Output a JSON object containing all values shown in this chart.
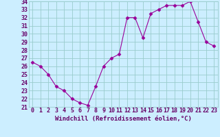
{
  "x": [
    0,
    1,
    2,
    3,
    4,
    5,
    6,
    7,
    8,
    9,
    10,
    11,
    12,
    13,
    14,
    15,
    16,
    17,
    18,
    19,
    20,
    21,
    22,
    23
  ],
  "y": [
    26.5,
    26.0,
    25.0,
    23.5,
    23.0,
    22.0,
    21.5,
    21.2,
    23.5,
    26.0,
    27.0,
    27.5,
    32.0,
    32.0,
    29.5,
    32.5,
    33.0,
    33.5,
    33.5,
    33.5,
    34.0,
    31.5,
    29.0,
    28.5
  ],
  "xlabel": "Windchill (Refroidissement éolien,°C)",
  "ylim": [
    21,
    34
  ],
  "xlim": [
    -0.5,
    23.5
  ],
  "yticks": [
    21,
    22,
    23,
    24,
    25,
    26,
    27,
    28,
    29,
    30,
    31,
    32,
    33,
    34
  ],
  "xticks": [
    0,
    1,
    2,
    3,
    4,
    5,
    6,
    7,
    8,
    9,
    10,
    11,
    12,
    13,
    14,
    15,
    16,
    17,
    18,
    19,
    20,
    21,
    22,
    23
  ],
  "line_color": "#990099",
  "marker": "D",
  "marker_size": 2.5,
  "bg_color": "#cceeff",
  "grid_color": "#99cccc",
  "label_color": "#660066",
  "tick_color": "#660066",
  "xlabel_fontsize": 6.5,
  "tick_fontsize": 6.0
}
